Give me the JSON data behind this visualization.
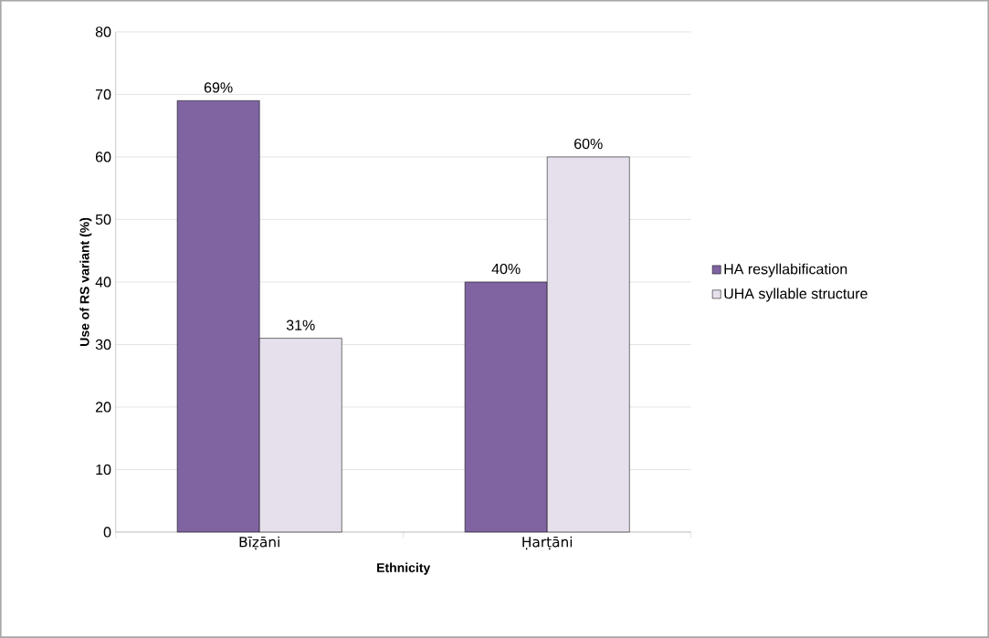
{
  "chart_data": {
    "type": "bar",
    "xlabel": "Ethnicity",
    "ylabel": "Use of RS variant (%)",
    "categories": [
      "Bīẓāni",
      "Ḥarṭāni"
    ],
    "series": [
      {
        "name": "HA resyllabification",
        "color": "#8064a2",
        "values": [
          69,
          40
        ],
        "value_labels": [
          "69%",
          "40%"
        ]
      },
      {
        "name": "UHA syllable structure",
        "color": "#e6e0ec",
        "values": [
          31,
          60
        ],
        "value_labels": [
          "31%",
          "60%"
        ]
      }
    ],
    "ylim": [
      0,
      80
    ],
    "yticks": [
      0,
      10,
      20,
      30,
      40,
      50,
      60,
      70,
      80
    ],
    "grid": "y",
    "legend": "right"
  }
}
